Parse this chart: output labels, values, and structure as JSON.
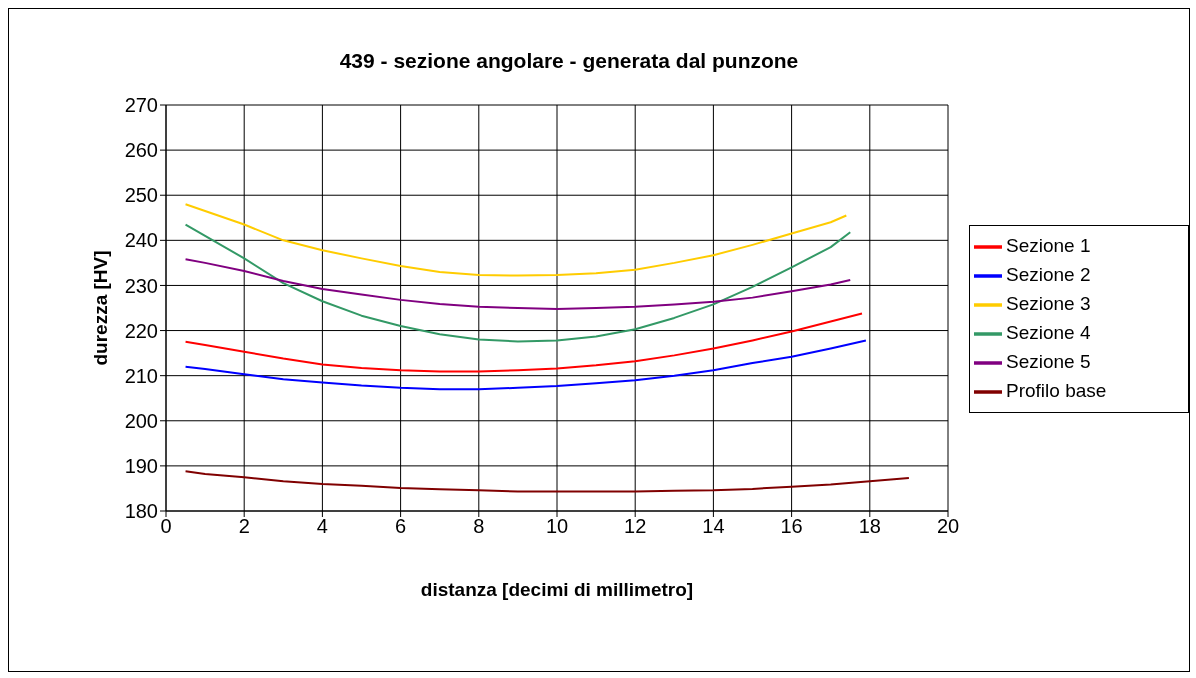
{
  "chart_data": {
    "type": "line",
    "title": "439 - sezione angolare - generata dal punzone",
    "xlabel": "distanza [decimi di millimetro]",
    "ylabel": "durezza [HV]",
    "xlim": [
      0,
      20
    ],
    "xticks": [
      0,
      2,
      4,
      6,
      8,
      10,
      12,
      14,
      16,
      18,
      20
    ],
    "ylim": [
      180,
      270
    ],
    "yticks": [
      180,
      190,
      200,
      210,
      220,
      230,
      240,
      250,
      260,
      270
    ],
    "grid": true,
    "legend": "right",
    "marker": "none",
    "line_style": "solid",
    "series": [
      {
        "name": "Sezione 1",
        "color": "#ff0000",
        "x": [
          0.5,
          1,
          2,
          3,
          4,
          5,
          6,
          7,
          8,
          9,
          10,
          11,
          12,
          13,
          14,
          15,
          16,
          17,
          17.8
        ],
        "values": [
          217.5,
          216.8,
          215.3,
          213.8,
          212.5,
          211.7,
          211.2,
          210.9,
          210.9,
          211.2,
          211.6,
          212.3,
          213.2,
          214.5,
          216,
          217.8,
          219.8,
          222,
          223.8
        ]
      },
      {
        "name": "Sezione 2",
        "color": "#0000ff",
        "x": [
          0.5,
          1,
          2,
          3,
          4,
          5,
          6,
          7,
          8,
          9,
          10,
          11,
          12,
          13,
          14,
          15,
          16,
          17,
          17.9
        ],
        "values": [
          212,
          211.5,
          210.3,
          209.2,
          208.5,
          207.8,
          207.3,
          207,
          207,
          207.3,
          207.7,
          208.3,
          209,
          210,
          211.2,
          212.8,
          214.2,
          216,
          217.8
        ]
      },
      {
        "name": "Sezione 3",
        "color": "#ffcc00",
        "x": [
          0.5,
          1,
          2,
          3,
          4,
          5,
          6,
          7,
          8,
          9,
          10,
          11,
          12,
          13,
          14,
          15,
          16,
          17,
          17.4
        ],
        "values": [
          248,
          246.5,
          243.5,
          240,
          237.8,
          236,
          234.3,
          233,
          232.3,
          232.2,
          232.3,
          232.7,
          233.5,
          235,
          236.7,
          239,
          241.5,
          244,
          245.5
        ]
      },
      {
        "name": "Sezione 4",
        "color": "#339966",
        "x": [
          0.5,
          1,
          2,
          3,
          4,
          5,
          6,
          7,
          8,
          9,
          10,
          11,
          12,
          13,
          14,
          15,
          16,
          17,
          17.5
        ],
        "values": [
          243.5,
          241,
          236,
          230.5,
          226.5,
          223.3,
          221,
          219.2,
          218,
          217.6,
          217.8,
          218.7,
          220.3,
          222.8,
          225.8,
          229.7,
          234,
          238.5,
          241.8
        ]
      },
      {
        "name": "Sezione 5",
        "color": "#800080",
        "x": [
          0.5,
          1,
          2,
          3,
          4,
          5,
          6,
          7,
          8,
          9,
          10,
          11,
          12,
          13,
          14,
          15,
          16,
          17,
          17.5
        ],
        "values": [
          235.8,
          235,
          233.2,
          231,
          229.2,
          228,
          226.8,
          225.9,
          225.3,
          225,
          224.8,
          225,
          225.3,
          225.8,
          226.4,
          227.3,
          228.7,
          230.2,
          231.2
        ]
      },
      {
        "name": "Profilo base",
        "color": "#800000",
        "x": [
          0.5,
          1,
          2,
          3,
          4,
          5,
          6,
          7,
          8,
          9,
          10,
          11,
          12,
          13,
          14,
          15,
          16,
          17,
          18,
          19
        ],
        "values": [
          188.8,
          188.2,
          187.5,
          186.6,
          186,
          185.6,
          185.1,
          184.8,
          184.6,
          184.3,
          184.3,
          184.3,
          184.3,
          184.5,
          184.6,
          184.9,
          185.4,
          185.9,
          186.6,
          187.3
        ]
      }
    ]
  }
}
